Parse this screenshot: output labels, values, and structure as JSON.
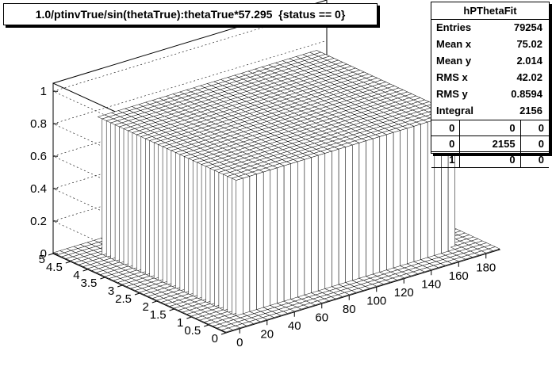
{
  "title": "1.0/ptinvTrue/sin(thetaTrue):thetaTrue*57.295  {status == 0}",
  "stats": {
    "name": "hPThetaFit",
    "rows": [
      {
        "label": "Entries",
        "value": "79254"
      },
      {
        "label": "Mean x",
        "value": "75.02"
      },
      {
        "label": "Mean y",
        "value": "2.014"
      },
      {
        "label": "RMS x",
        "value": "42.02"
      },
      {
        "label": "RMS y",
        "value": "0.8594"
      },
      {
        "label": "Integral",
        "value": "2156"
      }
    ],
    "grid": [
      [
        "0",
        "0",
        "0"
      ],
      [
        "0",
        "2155",
        "0"
      ],
      [
        "1",
        "0",
        "0"
      ]
    ]
  },
  "chart_data": {
    "type": "lego",
    "title": "1.0/ptinvTrue/sin(thetaTrue):thetaTrue*57.295  {status == 0}",
    "x_ticks": [
      "0",
      "20",
      "40",
      "60",
      "80",
      "100",
      "120",
      "140",
      "160",
      "180"
    ],
    "x_range": [
      -10,
      190
    ],
    "y_ticks": [
      "0",
      "0.5",
      "1",
      "1.5",
      "2",
      "2.5",
      "3",
      "3.5",
      "4",
      "4.5",
      "5"
    ],
    "y_range": [
      0,
      5
    ],
    "z_ticks": [
      "0",
      "0.2",
      "0.4",
      "0.6",
      "0.8",
      "1"
    ],
    "z_range": [
      0,
      1.05
    ],
    "bin_plateau": {
      "x_range": [
        10,
        170
      ],
      "y_range": [
        0.5,
        4.5
      ],
      "value": 0.84
    },
    "colors": {
      "bar_face": "#ffffff",
      "bar_edge": "#000000",
      "frame": "#000000"
    }
  }
}
